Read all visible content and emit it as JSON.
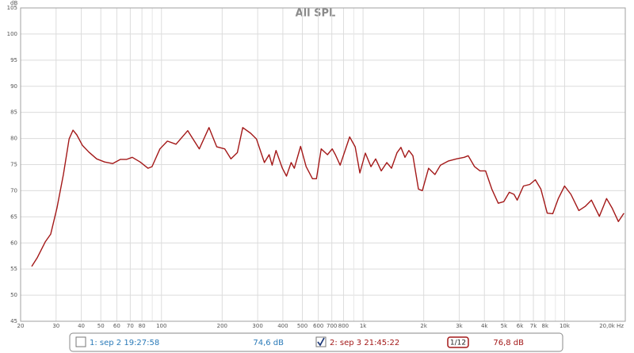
{
  "chart_data": {
    "type": "line",
    "title": "All SPL",
    "y_unit": "dB",
    "log_x": true,
    "grid": true,
    "xlim": [
      20,
      20000
    ],
    "ylim": [
      45,
      105
    ],
    "xticks": [
      20,
      30,
      40,
      50,
      60,
      70,
      80,
      100,
      200,
      300,
      400,
      500,
      600,
      700,
      800,
      {
        "value": 1000,
        "label": "1k"
      },
      {
        "value": 2000,
        "label": "2k"
      },
      {
        "value": 3000,
        "label": "3k"
      },
      {
        "value": 4000,
        "label": "4k"
      },
      {
        "value": 5000,
        "label": "5k"
      },
      {
        "value": 6000,
        "label": "6k"
      },
      {
        "value": 7000,
        "label": "7k"
      },
      {
        "value": 8000,
        "label": "8k"
      },
      {
        "value": 10000,
        "label": "10k"
      },
      {
        "value": 20000,
        "label": "20,0k Hz"
      }
    ],
    "minor_xticks": [
      90,
      900,
      9000
    ],
    "yticks": [
      45,
      50,
      55,
      60,
      65,
      70,
      75,
      80,
      85,
      90,
      95,
      100,
      105
    ],
    "series": [
      {
        "name": "1: sep 2 19:27:58",
        "color": "#2a7ab8",
        "visible": false,
        "level": "74,6 dB"
      },
      {
        "name": "2: sep 3 21:45:22",
        "color": "#a31818",
        "visible": true,
        "level": "76,8 dB",
        "smoothing": "1/12",
        "x": [
          22.7,
          24.2,
          26.5,
          28.2,
          30.3,
          32.6,
          34.8,
          36.4,
          38,
          40.5,
          43.6,
          47.7,
          52.2,
          57.2,
          62.6,
          67.2,
          71.6,
          78.3,
          85.7,
          89.7,
          98.2,
          107,
          118,
          135,
          154,
          172,
          188,
          206,
          221,
          238,
          253,
          277,
          296,
          324,
          342,
          354,
          370,
          398,
          417,
          440,
          456,
          490,
          522,
          561,
          587,
          620,
          666,
          703,
          729,
          770,
          858,
          914,
          964,
          1027,
          1095,
          1155,
          1231,
          1312,
          1384,
          1475,
          1542,
          1615,
          1688,
          1767,
          1883,
          1969,
          2115,
          2273,
          2422,
          2653,
          2904,
          3178,
          3325,
          3574,
          3805,
          4055,
          4356,
          4686,
          4993,
          5314,
          5610,
          5819,
          6248,
          6717,
          7159,
          7625,
          8199,
          8738,
          9306,
          10000,
          10750,
          11770,
          12650,
          13590,
          14880,
          16150,
          17190,
          18480,
          19690
        ],
        "values": [
          55.5,
          57.2,
          60.2,
          61.7,
          66.7,
          73.1,
          79.9,
          81.6,
          80.7,
          78.7,
          77.4,
          76.1,
          75.5,
          75.2,
          76.0,
          76.0,
          76.4,
          75.5,
          74.3,
          74.6,
          78.0,
          79.5,
          78.9,
          81.5,
          78.0,
          82.1,
          78.4,
          78.0,
          76.1,
          77.3,
          82.1,
          81.0,
          79.9,
          75.4,
          76.9,
          74.9,
          77.7,
          74.3,
          72.8,
          75.4,
          74.3,
          78.5,
          74.6,
          72.3,
          72.3,
          78.0,
          76.9,
          78.0,
          76.9,
          74.9,
          80.3,
          78.4,
          73.4,
          77.2,
          74.6,
          76.1,
          73.8,
          75.4,
          74.3,
          77.3,
          78.3,
          76.4,
          77.7,
          76.7,
          70.3,
          70.0,
          74.3,
          73.1,
          74.9,
          75.7,
          76.1,
          76.4,
          76.7,
          74.6,
          73.8,
          73.8,
          70.3,
          67.6,
          67.9,
          69.7,
          69.3,
          68.2,
          70.9,
          71.2,
          72.1,
          70.3,
          65.7,
          65.6,
          68.5,
          70.9,
          69.3,
          66.2,
          67.0,
          68.2,
          65.1,
          68.5,
          66.7,
          64.1,
          65.7
        ]
      }
    ]
  }
}
